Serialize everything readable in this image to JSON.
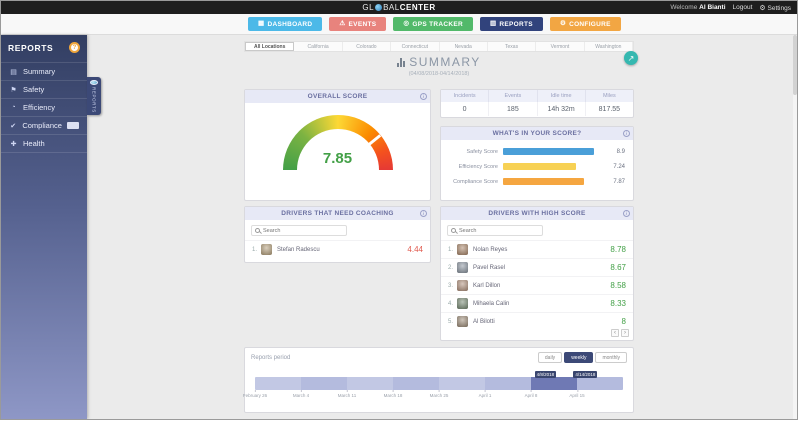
{
  "topbar": {
    "brand_prefix": "GL",
    "brand_mid": "BAL",
    "brand_bold": "CENTER",
    "welcome_label": "Welcome",
    "user_name": "Al Bianti",
    "logout_label": "Logout",
    "settings_label": "Settings"
  },
  "nav": {
    "items": [
      {
        "label": "DASHBOARD",
        "color": "#4cb9e8",
        "icon": "dashboard-icon"
      },
      {
        "label": "EVENTS",
        "color": "#e8837d",
        "icon": "events-icon"
      },
      {
        "label": "GPS TRACKER",
        "color": "#52b96a",
        "icon": "gps-icon"
      },
      {
        "label": "REPORTS",
        "color": "#31437c",
        "icon": "reports-icon"
      },
      {
        "label": "CONFIGURE",
        "color": "#f2a643",
        "icon": "configure-icon"
      }
    ]
  },
  "sidebar": {
    "title": "REPORTS",
    "items": [
      {
        "label": "Summary"
      },
      {
        "label": "Safety"
      },
      {
        "label": "Efficiency"
      },
      {
        "label": "Compliance"
      },
      {
        "label": "Health"
      }
    ],
    "flyout_label": "REPORTS"
  },
  "location_tabs": [
    "All Locations",
    "California",
    "Colorado",
    "Connecticut",
    "Nevada",
    "Texas",
    "Vermont",
    "Washington"
  ],
  "page": {
    "title": "SUMMARY",
    "date_range": "(04/08/2018-04/14/2018)"
  },
  "overall_score": {
    "title": "OVERALL SCORE",
    "value": "7.85",
    "value_color": "#43a047",
    "scale_min": 0,
    "scale_max": 10,
    "gauge_colors": [
      "#43a047",
      "#7cb342",
      "#fdd835",
      "#fb8c00",
      "#e53935"
    ]
  },
  "summary_stats": {
    "columns": [
      "Incidents",
      "Events",
      "Idle time",
      "Miles"
    ],
    "values": [
      "0",
      "185",
      "14h 32m",
      "817.55"
    ]
  },
  "score_breakdown": {
    "title": "WHAT'S IN YOUR SCORE?",
    "bars": [
      {
        "label": "Safety Score",
        "value": "8.9",
        "pct": 89,
        "color": "#4a9fd8"
      },
      {
        "label": "Efficiency Score",
        "value": "7.24",
        "pct": 72,
        "color": "#f7d154"
      },
      {
        "label": "Compliance Score",
        "value": "7.87",
        "pct": 79,
        "color": "#f5a640"
      }
    ]
  },
  "coaching": {
    "title": "DRIVERS THAT NEED COACHING",
    "search_placeholder": "Search",
    "score_color": "#e05a4e",
    "drivers": [
      {
        "rank": "1.",
        "name": "Stefan Radescu",
        "score": "4.44"
      }
    ]
  },
  "high_score": {
    "title": "DRIVERS WITH HIGH SCORE",
    "search_placeholder": "Search",
    "score_color": "#43a047",
    "drivers": [
      {
        "rank": "1.",
        "name": "Nolan Reyes",
        "score": "8.78"
      },
      {
        "rank": "2.",
        "name": "Pavel Rasel",
        "score": "8.67"
      },
      {
        "rank": "3.",
        "name": "Karl Dillon",
        "score": "8.58"
      },
      {
        "rank": "4.",
        "name": "Mihaela Calin",
        "score": "8.33"
      },
      {
        "rank": "5.",
        "name": "Al Bilotti",
        "score": "8"
      }
    ]
  },
  "reports_period": {
    "title": "Reports period",
    "range_buttons": [
      "daily",
      "weekly",
      "monthly"
    ],
    "selected_range": "weekly",
    "axis_labels": [
      "February 26",
      "March 4",
      "March 11",
      "March 18",
      "March 25",
      "April 1",
      "April 8",
      "April 15"
    ],
    "start_marker": "4/8/2018",
    "end_marker": "4/14/2018"
  }
}
